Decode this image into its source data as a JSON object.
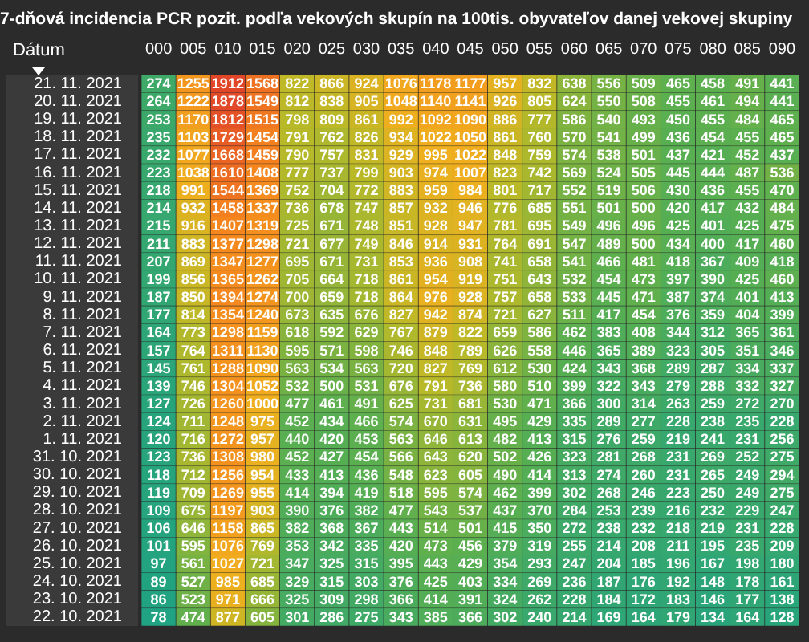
{
  "chart_data": {
    "type": "heatmap",
    "title": "7-dňová incidencia PCR pozit. podľa vekových skupín na 100tis. obyvateľov danej vekovej skupiny",
    "ylabel": "Dátum",
    "data_labels": true,
    "categories": [
      "000",
      "005",
      "010",
      "015",
      "020",
      "025",
      "030",
      "035",
      "040",
      "045",
      "050",
      "055",
      "060",
      "065",
      "070",
      "075",
      "080",
      "085",
      "090"
    ],
    "y_categories": [
      "21. 11. 2021",
      "20. 11. 2021",
      "19. 11. 2021",
      "18. 11. 2021",
      "17. 11. 2021",
      "16. 11. 2021",
      "15. 11. 2021",
      "14. 11. 2021",
      "13. 11. 2021",
      "12. 11. 2021",
      "11. 11. 2021",
      "10. 11. 2021",
      "9. 11. 2021",
      "8. 11. 2021",
      "7. 11. 2021",
      "6. 11. 2021",
      "5. 11. 2021",
      "4. 11. 2021",
      "3. 11. 2021",
      "2. 11. 2021",
      "1. 11. 2021",
      "31. 10. 2021",
      "30. 10. 2021",
      "29. 10. 2021",
      "28. 10. 2021",
      "27. 10. 2021",
      "26. 10. 2021",
      "25. 10. 2021",
      "24. 10. 2021",
      "23. 10. 2021",
      "22. 10. 2021"
    ],
    "cells": [
      [
        274,
        1255,
        1912,
        1568,
        822,
        866,
        924,
        1076,
        1178,
        1177,
        957,
        832,
        638,
        556,
        509,
        465,
        458,
        491,
        441
      ],
      [
        264,
        1222,
        1878,
        1549,
        812,
        838,
        905,
        1048,
        1140,
        1141,
        926,
        805,
        624,
        550,
        508,
        455,
        461,
        494,
        441
      ],
      [
        253,
        1170,
        1812,
        1515,
        798,
        809,
        861,
        992,
        1092,
        1090,
        886,
        777,
        586,
        540,
        493,
        450,
        455,
        484,
        465
      ],
      [
        235,
        1103,
        1729,
        1454,
        791,
        762,
        826,
        934,
        1022,
        1050,
        861,
        760,
        570,
        541,
        499,
        436,
        454,
        455,
        465
      ],
      [
        232,
        1077,
        1668,
        1459,
        790,
        757,
        831,
        929,
        995,
        1022,
        848,
        759,
        574,
        538,
        501,
        437,
        421,
        452,
        437
      ],
      [
        223,
        1038,
        1610,
        1408,
        777,
        737,
        799,
        903,
        974,
        1007,
        823,
        742,
        569,
        524,
        505,
        445,
        444,
        487,
        536
      ],
      [
        218,
        991,
        1544,
        1369,
        752,
        704,
        772,
        883,
        959,
        984,
        801,
        717,
        552,
        519,
        506,
        430,
        436,
        455,
        470
      ],
      [
        214,
        932,
        1458,
        1337,
        736,
        678,
        747,
        857,
        932,
        946,
        776,
        685,
        551,
        501,
        500,
        420,
        417,
        432,
        484
      ],
      [
        215,
        916,
        1407,
        1319,
        725,
        671,
        748,
        851,
        928,
        947,
        781,
        695,
        549,
        496,
        496,
        425,
        401,
        425,
        475
      ],
      [
        211,
        883,
        1377,
        1298,
        721,
        677,
        749,
        846,
        914,
        931,
        764,
        691,
        547,
        489,
        500,
        434,
        400,
        417,
        460
      ],
      [
        207,
        869,
        1347,
        1277,
        695,
        671,
        731,
        853,
        936,
        908,
        741,
        658,
        541,
        466,
        481,
        418,
        367,
        409,
        418
      ],
      [
        199,
        856,
        1365,
        1262,
        705,
        664,
        718,
        861,
        954,
        919,
        751,
        643,
        532,
        454,
        473,
        397,
        390,
        425,
        460
      ],
      [
        187,
        850,
        1394,
        1274,
        700,
        659,
        718,
        864,
        976,
        928,
        757,
        658,
        533,
        445,
        471,
        387,
        374,
        401,
        413
      ],
      [
        177,
        814,
        1354,
        1240,
        673,
        635,
        676,
        827,
        942,
        874,
        721,
        627,
        511,
        417,
        454,
        376,
        359,
        404,
        399
      ],
      [
        164,
        773,
        1298,
        1159,
        618,
        592,
        629,
        767,
        879,
        822,
        659,
        586,
        462,
        383,
        408,
        344,
        312,
        365,
        361
      ],
      [
        157,
        764,
        1311,
        1130,
        595,
        571,
        598,
        746,
        848,
        789,
        626,
        558,
        446,
        365,
        389,
        323,
        305,
        351,
        346
      ],
      [
        145,
        761,
        1288,
        1090,
        563,
        534,
        563,
        720,
        827,
        769,
        612,
        530,
        424,
        343,
        368,
        289,
        287,
        334,
        337
      ],
      [
        139,
        746,
        1304,
        1052,
        532,
        500,
        531,
        676,
        791,
        736,
        580,
        510,
        399,
        322,
        343,
        279,
        288,
        332,
        327
      ],
      [
        127,
        726,
        1260,
        1000,
        477,
        461,
        491,
        625,
        731,
        681,
        530,
        471,
        366,
        300,
        314,
        263,
        259,
        272,
        270
      ],
      [
        124,
        711,
        1248,
        975,
        452,
        434,
        466,
        574,
        670,
        631,
        495,
        429,
        335,
        289,
        277,
        228,
        238,
        235,
        228
      ],
      [
        120,
        716,
        1272,
        957,
        440,
        420,
        453,
        563,
        646,
        613,
        482,
        413,
        315,
        276,
        259,
        219,
        241,
        231,
        256
      ],
      [
        123,
        736,
        1308,
        980,
        452,
        427,
        454,
        566,
        643,
        620,
        502,
        426,
        323,
        281,
        268,
        231,
        269,
        252,
        275
      ],
      [
        118,
        712,
        1256,
        954,
        433,
        413,
        436,
        548,
        623,
        605,
        490,
        414,
        313,
        274,
        260,
        231,
        265,
        249,
        294
      ],
      [
        119,
        709,
        1269,
        955,
        414,
        394,
        419,
        518,
        595,
        574,
        462,
        399,
        302,
        268,
        246,
        223,
        250,
        249,
        275
      ],
      [
        109,
        675,
        1197,
        903,
        390,
        376,
        382,
        477,
        543,
        537,
        437,
        370,
        284,
        253,
        239,
        216,
        232,
        229,
        247
      ],
      [
        106,
        646,
        1158,
        865,
        382,
        368,
        367,
        443,
        514,
        501,
        415,
        350,
        272,
        238,
        232,
        218,
        219,
        231,
        228
      ],
      [
        101,
        595,
        1076,
        769,
        353,
        342,
        335,
        420,
        473,
        456,
        379,
        319,
        255,
        214,
        208,
        211,
        195,
        235,
        209
      ],
      [
        97,
        561,
        1027,
        721,
        347,
        325,
        315,
        395,
        443,
        429,
        354,
        293,
        247,
        204,
        185,
        196,
        167,
        198,
        180
      ],
      [
        89,
        527,
        985,
        685,
        329,
        315,
        303,
        376,
        425,
        403,
        334,
        269,
        236,
        187,
        176,
        192,
        148,
        178,
        161
      ],
      [
        86,
        523,
        971,
        666,
        325,
        309,
        298,
        366,
        414,
        391,
        324,
        262,
        228,
        184,
        172,
        183,
        146,
        177,
        138
      ],
      [
        78,
        474,
        877,
        605,
        301,
        286,
        275,
        343,
        385,
        366,
        302,
        240,
        214,
        169,
        164,
        179,
        134,
        164,
        128
      ]
    ]
  }
}
